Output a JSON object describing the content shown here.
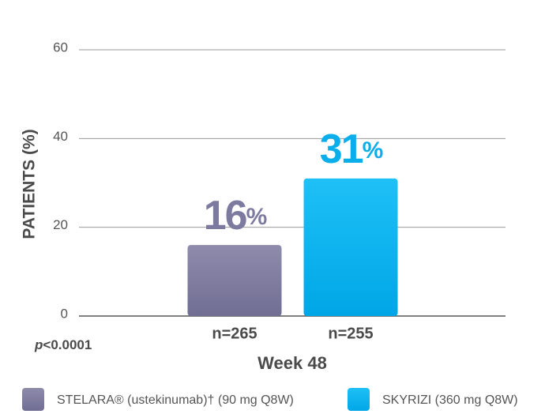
{
  "chart_data": {
    "type": "bar",
    "y_label": "PATIENTS (%)",
    "x_label": "Week 48",
    "annotation": "p<0.0001",
    "categories": [
      "n=265",
      "n=255"
    ],
    "values": [
      16,
      31
    ],
    "value_labels": [
      "16%",
      "31%"
    ],
    "colors": [
      "#7d7aa0",
      "#0aaeea"
    ],
    "legend": [
      "STELARA® (ustekinumab)† (90 mg Q8W)",
      "SKYRIZI (360 mg Q8W)"
    ],
    "ylim": [
      0,
      60
    ],
    "yticks": [
      0,
      20,
      40,
      60
    ],
    "grid": true
  }
}
